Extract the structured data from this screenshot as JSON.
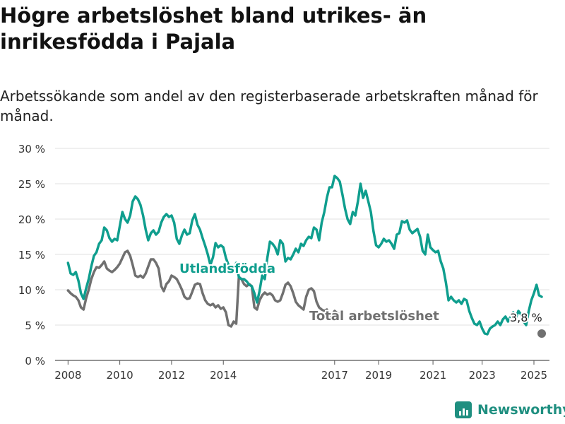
{
  "title": "Högre arbetslöshet bland utrikes- än inrikesfödda i Pajala",
  "subtitle": "Arbetssökande som andel av den registerbaserade arbetskraften månad för månad.",
  "brand": {
    "name": "Newsworthy",
    "icon": "newsworthy-logo-icon"
  },
  "colors": {
    "utlandsfodda": "#0f9e8e",
    "total": "#707070",
    "grid": "#e2e2e2",
    "text": "#333333"
  },
  "chart_data": {
    "type": "line",
    "ylabel": "",
    "xlabel": "",
    "ylim": [
      0,
      30
    ],
    "xlim": [
      2007.5,
      2026.0
    ],
    "grid": true,
    "y_ticks": [
      0,
      5,
      10,
      15,
      20,
      25,
      30
    ],
    "y_tick_labels": [
      "0 %",
      "5 %",
      "10 %",
      "15 %",
      "20 %",
      "25 %",
      "30 %"
    ],
    "x_ticks": [
      2008,
      2010,
      2012,
      2014,
      2017,
      2019,
      2021,
      2023,
      2025
    ],
    "x_tick_labels": [
      "2008",
      "2010",
      "2012",
      "2014",
      "2017",
      "2019",
      "2021",
      "2023",
      "2025"
    ],
    "series": [
      {
        "name": "Utlandsfödda",
        "color": "#0f9e8e",
        "points": [
          [
            2008.0,
            13.8
          ],
          [
            2008.1,
            12.3
          ],
          [
            2008.2,
            12.1
          ],
          [
            2008.3,
            12.5
          ],
          [
            2008.4,
            11.3
          ],
          [
            2008.5,
            9.5
          ],
          [
            2008.6,
            8.7
          ],
          [
            2008.7,
            10.2
          ],
          [
            2008.8,
            11.5
          ],
          [
            2008.9,
            13.3
          ],
          [
            2009.0,
            14.8
          ],
          [
            2009.1,
            15.3
          ],
          [
            2009.2,
            16.5
          ],
          [
            2009.3,
            17.0
          ],
          [
            2009.4,
            18.8
          ],
          [
            2009.5,
            18.4
          ],
          [
            2009.6,
            17.3
          ],
          [
            2009.7,
            16.8
          ],
          [
            2009.8,
            17.2
          ],
          [
            2009.9,
            17.0
          ],
          [
            2010.0,
            19.0
          ],
          [
            2010.1,
            21.0
          ],
          [
            2010.2,
            20.0
          ],
          [
            2010.3,
            19.5
          ],
          [
            2010.4,
            20.5
          ],
          [
            2010.5,
            22.5
          ],
          [
            2010.6,
            23.2
          ],
          [
            2010.7,
            22.8
          ],
          [
            2010.8,
            22.0
          ],
          [
            2010.9,
            20.5
          ],
          [
            2011.0,
            18.5
          ],
          [
            2011.1,
            17.0
          ],
          [
            2011.2,
            18.0
          ],
          [
            2011.3,
            18.4
          ],
          [
            2011.4,
            17.8
          ],
          [
            2011.5,
            18.2
          ],
          [
            2011.6,
            19.5
          ],
          [
            2011.7,
            20.3
          ],
          [
            2011.8,
            20.7
          ],
          [
            2011.9,
            20.3
          ],
          [
            2012.0,
            20.5
          ],
          [
            2012.1,
            19.5
          ],
          [
            2012.2,
            17.2
          ],
          [
            2012.3,
            16.5
          ],
          [
            2012.4,
            17.7
          ],
          [
            2012.5,
            18.5
          ],
          [
            2012.6,
            17.8
          ],
          [
            2012.7,
            18.0
          ],
          [
            2012.8,
            19.8
          ],
          [
            2012.9,
            20.7
          ],
          [
            2013.0,
            19.2
          ],
          [
            2013.1,
            18.5
          ],
          [
            2013.2,
            17.3
          ],
          [
            2013.3,
            16.2
          ],
          [
            2013.4,
            15.0
          ],
          [
            2013.5,
            13.5
          ],
          [
            2013.6,
            14.6
          ],
          [
            2013.7,
            16.6
          ],
          [
            2013.8,
            16.0
          ],
          [
            2013.9,
            16.3
          ],
          [
            2014.0,
            16.0
          ],
          [
            2014.1,
            14.5
          ],
          [
            2014.2,
            13.5
          ],
          [
            2014.3,
            12.5
          ],
          [
            2014.4,
            12.8
          ],
          [
            2014.5,
            13.8
          ],
          [
            2014.6,
            11.8
          ],
          [
            2014.7,
            11.5
          ],
          [
            2014.8,
            11.5
          ],
          [
            2014.9,
            11.2
          ],
          [
            2015.0,
            10.7
          ],
          [
            2015.1,
            10.5
          ],
          [
            2015.2,
            9.5
          ],
          [
            2015.3,
            8.2
          ],
          [
            2015.4,
            9.8
          ],
          [
            2015.5,
            12.0
          ],
          [
            2015.6,
            11.5
          ],
          [
            2015.7,
            14.5
          ],
          [
            2015.8,
            16.8
          ],
          [
            2015.9,
            16.5
          ],
          [
            2016.0,
            16.0
          ],
          [
            2016.1,
            15.0
          ],
          [
            2016.2,
            17.0
          ],
          [
            2016.3,
            16.5
          ],
          [
            2016.4,
            14.0
          ],
          [
            2016.5,
            14.5
          ],
          [
            2016.6,
            14.3
          ],
          [
            2016.7,
            15.0
          ],
          [
            2016.8,
            15.8
          ],
          [
            2016.9,
            15.3
          ],
          [
            2017.0,
            16.5
          ],
          [
            2017.1,
            16.2
          ],
          [
            2017.2,
            17.0
          ],
          [
            2017.3,
            17.5
          ],
          [
            2017.4,
            17.3
          ],
          [
            2017.5,
            18.8
          ],
          [
            2017.6,
            18.5
          ],
          [
            2017.7,
            17.0
          ],
          [
            2017.8,
            19.5
          ],
          [
            2017.9,
            21.0
          ],
          [
            2018.0,
            23.0
          ],
          [
            2018.1,
            24.5
          ],
          [
            2018.2,
            24.5
          ],
          [
            2018.3,
            26.1
          ],
          [
            2018.4,
            25.8
          ],
          [
            2018.5,
            25.3
          ],
          [
            2018.6,
            23.5
          ],
          [
            2018.7,
            21.5
          ],
          [
            2018.8,
            20.0
          ],
          [
            2018.9,
            19.3
          ],
          [
            2019.0,
            21.0
          ],
          [
            2019.1,
            20.5
          ],
          [
            2019.2,
            22.5
          ],
          [
            2019.3,
            25.0
          ],
          [
            2019.4,
            23.0
          ],
          [
            2019.5,
            24.0
          ],
          [
            2019.6,
            22.5
          ],
          [
            2019.7,
            21.0
          ],
          [
            2019.8,
            18.3
          ],
          [
            2019.9,
            16.3
          ],
          [
            2020.0,
            16.0
          ],
          [
            2020.1,
            16.5
          ],
          [
            2020.2,
            17.2
          ],
          [
            2020.3,
            16.8
          ],
          [
            2020.4,
            17.0
          ],
          [
            2020.5,
            16.5
          ],
          [
            2020.6,
            15.8
          ],
          [
            2020.7,
            17.8
          ],
          [
            2020.8,
            18.0
          ],
          [
            2020.9,
            19.7
          ],
          [
            2021.0,
            19.5
          ],
          [
            2021.1,
            19.8
          ],
          [
            2021.2,
            18.5
          ],
          [
            2021.3,
            18.0
          ],
          [
            2021.4,
            18.3
          ],
          [
            2021.5,
            18.6
          ],
          [
            2021.6,
            17.5
          ],
          [
            2021.7,
            15.5
          ],
          [
            2021.8,
            15.0
          ],
          [
            2021.9,
            17.8
          ],
          [
            2022.0,
            16.0
          ],
          [
            2022.1,
            15.6
          ],
          [
            2022.2,
            15.3
          ],
          [
            2022.3,
            15.5
          ],
          [
            2022.4,
            14.0
          ],
          [
            2022.5,
            13.0
          ],
          [
            2022.6,
            11.0
          ],
          [
            2022.7,
            8.5
          ],
          [
            2022.8,
            9.0
          ],
          [
            2022.9,
            8.5
          ],
          [
            2023.0,
            8.2
          ],
          [
            2023.1,
            8.5
          ],
          [
            2023.2,
            8.0
          ],
          [
            2023.3,
            8.7
          ],
          [
            2023.4,
            8.5
          ],
          [
            2023.5,
            7.0
          ],
          [
            2023.6,
            6.0
          ],
          [
            2023.7,
            5.2
          ],
          [
            2023.8,
            5.0
          ],
          [
            2023.9,
            5.5
          ],
          [
            2024.0,
            4.5
          ],
          [
            2024.1,
            3.8
          ],
          [
            2024.2,
            3.7
          ],
          [
            2024.3,
            4.5
          ],
          [
            2024.4,
            4.8
          ],
          [
            2024.5,
            5.0
          ],
          [
            2024.6,
            5.5
          ],
          [
            2024.7,
            5.0
          ],
          [
            2024.8,
            5.8
          ],
          [
            2024.9,
            6.2
          ],
          [
            2025.0,
            5.5
          ],
          [
            2025.1,
            6.2
          ],
          [
            2025.2,
            6.8
          ],
          [
            2025.3,
            6.0
          ],
          [
            2025.4,
            7.0
          ],
          [
            2025.5,
            6.5
          ],
          [
            2025.6,
            5.5
          ],
          [
            2025.7,
            5.0
          ],
          [
            2025.8,
            7.0
          ],
          [
            2025.9,
            8.5
          ],
          [
            2026.0,
            9.5
          ],
          [
            2026.1,
            10.7
          ],
          [
            2026.2,
            9.2
          ],
          [
            2026.3,
            9.0
          ]
        ]
      },
      {
        "name": "Total arbetslöshet",
        "color": "#707070",
        "points": [
          [
            2008.0,
            9.9
          ],
          [
            2008.1,
            9.5
          ],
          [
            2008.2,
            9.2
          ],
          [
            2008.3,
            9.0
          ],
          [
            2008.4,
            8.5
          ],
          [
            2008.5,
            7.5
          ],
          [
            2008.6,
            7.2
          ],
          [
            2008.7,
            8.8
          ],
          [
            2008.8,
            10.0
          ],
          [
            2008.9,
            11.5
          ],
          [
            2009.0,
            12.5
          ],
          [
            2009.1,
            13.2
          ],
          [
            2009.2,
            13.1
          ],
          [
            2009.3,
            13.5
          ],
          [
            2009.4,
            14.0
          ],
          [
            2009.5,
            13.0
          ],
          [
            2009.6,
            12.7
          ],
          [
            2009.7,
            12.5
          ],
          [
            2009.8,
            12.8
          ],
          [
            2009.9,
            13.2
          ],
          [
            2010.0,
            13.7
          ],
          [
            2010.1,
            14.5
          ],
          [
            2010.2,
            15.3
          ],
          [
            2010.3,
            15.5
          ],
          [
            2010.4,
            14.8
          ],
          [
            2010.5,
            13.5
          ],
          [
            2010.6,
            12.0
          ],
          [
            2010.7,
            11.8
          ],
          [
            2010.8,
            12.0
          ],
          [
            2010.9,
            11.7
          ],
          [
            2011.0,
            12.3
          ],
          [
            2011.1,
            13.3
          ],
          [
            2011.2,
            14.3
          ],
          [
            2011.3,
            14.3
          ],
          [
            2011.4,
            13.8
          ],
          [
            2011.5,
            13.0
          ],
          [
            2011.6,
            10.5
          ],
          [
            2011.7,
            9.8
          ],
          [
            2011.8,
            10.8
          ],
          [
            2011.9,
            11.2
          ],
          [
            2012.0,
            12.0
          ],
          [
            2012.1,
            11.8
          ],
          [
            2012.2,
            11.5
          ],
          [
            2012.3,
            10.8
          ],
          [
            2012.4,
            10.0
          ],
          [
            2012.5,
            9.0
          ],
          [
            2012.6,
            8.7
          ],
          [
            2012.7,
            8.8
          ],
          [
            2012.8,
            9.7
          ],
          [
            2012.9,
            10.7
          ],
          [
            2013.0,
            10.9
          ],
          [
            2013.1,
            10.8
          ],
          [
            2013.2,
            9.5
          ],
          [
            2013.3,
            8.5
          ],
          [
            2013.4,
            8.0
          ],
          [
            2013.5,
            7.8
          ],
          [
            2013.6,
            8.0
          ],
          [
            2013.7,
            7.5
          ],
          [
            2013.8,
            7.8
          ],
          [
            2013.9,
            7.3
          ],
          [
            2014.0,
            7.5
          ],
          [
            2014.1,
            6.8
          ],
          [
            2014.2,
            5.0
          ],
          [
            2014.3,
            4.8
          ],
          [
            2014.4,
            5.5
          ],
          [
            2014.5,
            5.2
          ],
          [
            2014.6,
            11.8
          ],
          [
            2014.7,
            11.5
          ],
          [
            2014.8,
            10.8
          ],
          [
            2014.9,
            10.5
          ],
          [
            2015.0,
            10.8
          ],
          [
            2015.1,
            10.5
          ],
          [
            2015.2,
            7.5
          ],
          [
            2015.3,
            7.2
          ],
          [
            2015.4,
            8.5
          ],
          [
            2015.5,
            9.2
          ],
          [
            2015.6,
            9.6
          ],
          [
            2015.7,
            9.3
          ],
          [
            2015.8,
            9.5
          ],
          [
            2015.9,
            9.2
          ],
          [
            2016.0,
            8.5
          ],
          [
            2016.1,
            8.3
          ],
          [
            2016.2,
            8.5
          ],
          [
            2016.3,
            9.5
          ],
          [
            2016.4,
            10.7
          ],
          [
            2016.5,
            11.0
          ],
          [
            2016.6,
            10.5
          ],
          [
            2016.7,
            9.5
          ],
          [
            2016.8,
            8.3
          ],
          [
            2016.9,
            7.8
          ],
          [
            2017.0,
            7.5
          ],
          [
            2017.1,
            7.2
          ],
          [
            2017.2,
            9.0
          ],
          [
            2017.3,
            10.0
          ],
          [
            2017.4,
            10.2
          ],
          [
            2017.5,
            9.8
          ],
          [
            2017.6,
            8.3
          ],
          [
            2017.7,
            7.5
          ],
          [
            2017.8,
            7.2
          ],
          [
            2017.9,
            7.0
          ],
          [
            2018.0,
            7.2
          ],
          [
            2018.1,
            6.0
          ],
          [
            2018.2,
            6.5
          ],
          [
            2018.3,
            7.0
          ],
          [
            2018.4,
            6.7
          ],
          [
            2018.5,
            6.5
          ]
        ]
      }
    ],
    "annotations": [
      {
        "text": "Utlandsfödda",
        "series": "Utlandsfödda",
        "x": 2014.8,
        "y": 12.8
      },
      {
        "text": "Total arbetslöshet",
        "series": "Total arbetslöshet",
        "x": 2021.9,
        "y": 6.2
      },
      {
        "text": "3,8 %",
        "series": "Total arbetslöshet",
        "x": 2026.3,
        "y": 3.8
      }
    ],
    "last_point": {
      "x": 2026.3,
      "y": 3.8
    }
  }
}
